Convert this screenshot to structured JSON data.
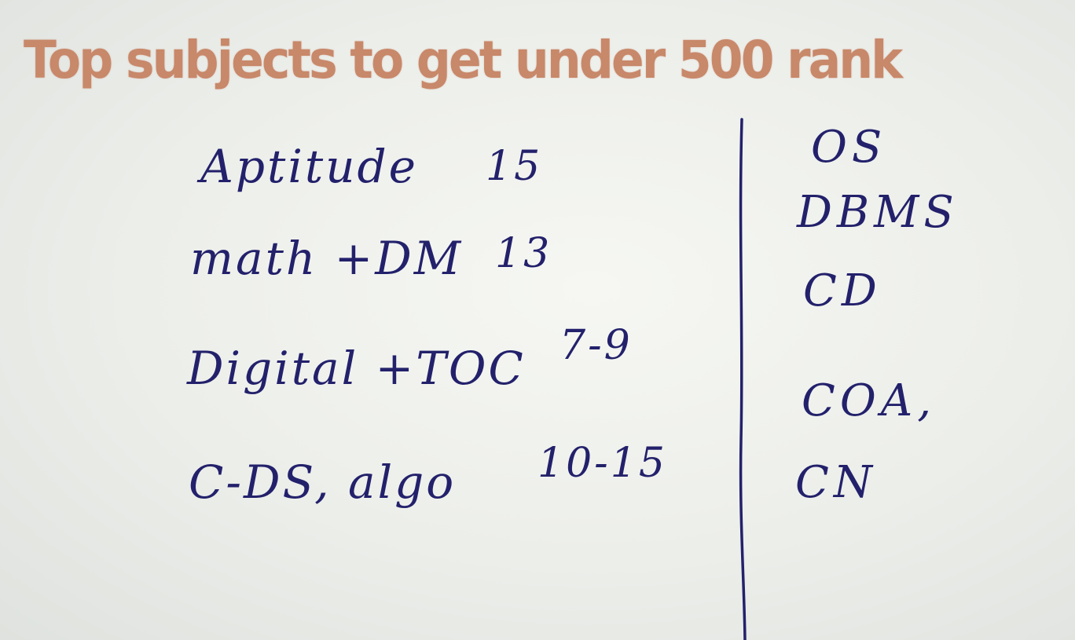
{
  "title": "Top subjects to get under 500 rank",
  "colors": {
    "title": "#c8886a",
    "ink": "#23216b",
    "board": "#eef0ec"
  },
  "left_list": [
    {
      "subject": "Aptitude",
      "marks": "15"
    },
    {
      "subject": "math +DM",
      "marks": "13"
    },
    {
      "subject": "Digital +TOC",
      "marks": "7-9"
    },
    {
      "subject": "C-DS, algo",
      "marks": "10-15"
    }
  ],
  "right_list": [
    "OS",
    "DBMS",
    "CD",
    "COA,",
    "CN"
  ]
}
